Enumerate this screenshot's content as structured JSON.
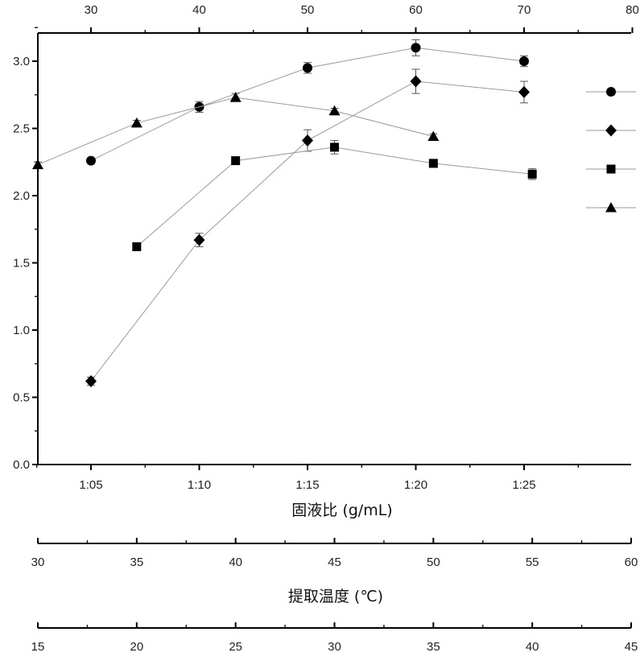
{
  "chart_data": {
    "type": "line",
    "xlabel": "固液比 (g/mL)",
    "ylim": [
      0,
      3.2
    ],
    "yticks": [
      "0.0",
      "0.5",
      "1.0",
      "1.5",
      "2.0",
      "2.5",
      "3.0"
    ],
    "grid": false,
    "legend_position": "right",
    "axes": {
      "top": {
        "ticks": [
          "30",
          "40",
          "50",
          "60",
          "70",
          "80"
        ],
        "range": [
          25,
          80
        ]
      },
      "bottom": {
        "ticks": [
          "1:05",
          "1:10",
          "1:15",
          "1:20",
          "1:25"
        ],
        "range": [
          2.5,
          30
        ]
      },
      "extra": [
        {
          "label": "提取温度 (℃)",
          "ticks": [
            "30",
            "35",
            "40",
            "45",
            "50",
            "55",
            "60"
          ],
          "range": [
            30,
            60
          ]
        },
        {
          "label": "",
          "ticks": [
            "15",
            "20",
            "25",
            "30",
            "35",
            "40",
            "45"
          ],
          "range": [
            15,
            45
          ]
        }
      ]
    },
    "series": [
      {
        "marker": "circle",
        "axis": "top",
        "x": [
          30,
          40,
          50,
          60,
          70
        ],
        "values": [
          2.26,
          2.66,
          2.95,
          3.1,
          3.0
        ],
        "errors": [
          0.02,
          0.04,
          0.04,
          0.06,
          0.04
        ]
      },
      {
        "marker": "diamond",
        "axis": "bottom",
        "x_labels": [
          "1:05",
          "1:10",
          "1:15",
          "1:20",
          "1:25"
        ],
        "x": [
          5,
          10,
          15,
          20,
          25
        ],
        "values": [
          0.62,
          1.67,
          2.41,
          2.85,
          2.77
        ],
        "errors": [
          0.03,
          0.05,
          0.08,
          0.09,
          0.08
        ]
      },
      {
        "marker": "square",
        "axis": "temperature",
        "x": [
          35,
          40,
          45,
          50,
          55
        ],
        "values": [
          1.62,
          2.26,
          2.36,
          2.24,
          2.16
        ],
        "errors": [
          0.02,
          0.02,
          0.05,
          0.03,
          0.04
        ]
      },
      {
        "marker": "triangle",
        "axis": "third",
        "x": [
          15,
          20,
          25,
          30,
          35
        ],
        "values": [
          2.23,
          2.54,
          2.73,
          2.63,
          2.44
        ],
        "errors": [
          0.02,
          0.02,
          0.03,
          0.02,
          0.02
        ]
      }
    ]
  }
}
